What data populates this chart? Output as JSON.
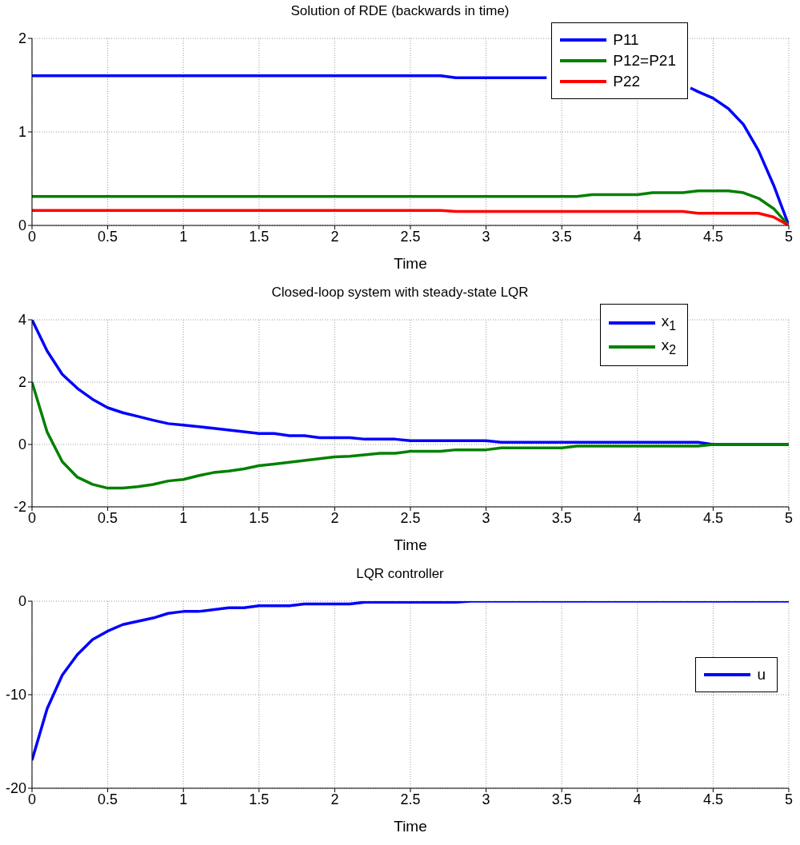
{
  "chart_data": [
    {
      "type": "line",
      "title": "Solution of RDE (backwards in time)",
      "xlabel": "Time",
      "xlim": [
        0,
        5
      ],
      "xticks": [
        0,
        0.5,
        1,
        1.5,
        2,
        2.5,
        3,
        3.5,
        4,
        4.5,
        5
      ],
      "ylim": [
        0,
        2
      ],
      "yticks": [
        0,
        1,
        2
      ],
      "grid": true,
      "legend": "top right",
      "line_style": "solid",
      "marker": "none",
      "series": [
        {
          "name": "P11",
          "color": "#0000ff",
          "x": [
            0,
            2.7,
            2.8,
            3.4,
            3.5,
            4.35,
            4.4,
            4.5,
            4.6,
            4.7,
            4.8,
            4.9,
            5
          ],
          "values": [
            1.6,
            1.6,
            1.58,
            1.58,
            null,
            1.47,
            1.43,
            1.36,
            1.25,
            1.08,
            0.8,
            0.43,
            0
          ]
        },
        {
          "name": "P12=P21",
          "color": "#008000",
          "x": [
            0,
            3.6,
            3.7,
            4.0,
            4.1,
            4.3,
            4.4,
            4.6,
            4.7,
            4.8,
            4.9,
            5
          ],
          "values": [
            0.31,
            0.31,
            0.33,
            0.33,
            0.35,
            0.35,
            0.37,
            0.37,
            0.35,
            0.29,
            0.18,
            0
          ]
        },
        {
          "name": "P22",
          "color": "#ff0000",
          "x": [
            0,
            2.7,
            2.8,
            4.3,
            4.4,
            4.8,
            4.9,
            5
          ],
          "values": [
            0.16,
            0.16,
            0.15,
            0.15,
            0.13,
            0.13,
            0.09,
            0
          ]
        }
      ]
    },
    {
      "type": "line",
      "title": "Closed-loop system with steady-state LQR",
      "xlabel": "Time",
      "xlim": [
        0,
        5
      ],
      "xticks": [
        0,
        0.5,
        1,
        1.5,
        2,
        2.5,
        3,
        3.5,
        4,
        4.5,
        5
      ],
      "ylim": [
        -2,
        4
      ],
      "yticks": [
        -2,
        0,
        2,
        4
      ],
      "grid": true,
      "legend": "top right",
      "line_style": "solid",
      "marker": "none",
      "series": [
        {
          "name": "x$_{1}$",
          "color": "#0000ff",
          "x": [
            0,
            0.1,
            0.2,
            0.3,
            0.4,
            0.5,
            0.6,
            0.7,
            0.8,
            0.9,
            1,
            1.2,
            1.5,
            1.6,
            1.7,
            1.8,
            1.9,
            2.1,
            2.2,
            2.4,
            2.5,
            3.0,
            3.1,
            4.4,
            4.5,
            5
          ],
          "values": [
            4,
            3.0,
            2.25,
            1.8,
            1.45,
            1.18,
            1.02,
            0.9,
            0.78,
            0.67,
            0.62,
            0.52,
            0.35,
            0.35,
            0.28,
            0.28,
            0.22,
            0.22,
            0.17,
            0.17,
            0.12,
            0.12,
            0.07,
            0.07,
            0,
            0
          ]
        },
        {
          "name": "x$_{2}$",
          "color": "#008000",
          "x": [
            0,
            0.1,
            0.2,
            0.3,
            0.4,
            0.5,
            0.6,
            0.7,
            0.8,
            0.9,
            1,
            1.1,
            1.2,
            1.3,
            1.4,
            1.5,
            1.6,
            2.0,
            2.1,
            2.3,
            2.4,
            2.5,
            2.7,
            2.8,
            3.0,
            3.1,
            3.5,
            3.6,
            4.4,
            4.5,
            5
          ],
          "values": [
            2,
            0.4,
            -0.55,
            -1.05,
            -1.28,
            -1.4,
            -1.4,
            -1.35,
            -1.28,
            -1.17,
            -1.12,
            -1.0,
            -0.9,
            -0.85,
            -0.78,
            -0.68,
            -0.63,
            -0.4,
            -0.38,
            -0.28,
            -0.28,
            -0.22,
            -0.22,
            -0.17,
            -0.17,
            -0.11,
            -0.11,
            -0.05,
            -0.05,
            0,
            0
          ]
        }
      ]
    },
    {
      "type": "line",
      "title": "LQR controller",
      "xlabel": "Time",
      "xlim": [
        0,
        5
      ],
      "xticks": [
        0,
        0.5,
        1,
        1.5,
        2,
        2.5,
        3,
        3.5,
        4,
        4.5,
        5
      ],
      "ylim": [
        -20,
        0
      ],
      "yticks": [
        -20,
        -10,
        0
      ],
      "grid": true,
      "legend": "right",
      "line_style": "solid",
      "marker": "none",
      "series": [
        {
          "name": "u",
          "color": "#0000ff",
          "x": [
            0,
            0.1,
            0.2,
            0.3,
            0.4,
            0.5,
            0.6,
            0.8,
            0.9,
            1.0,
            1.1,
            1.3,
            1.4,
            1.5,
            1.7,
            1.8,
            2.1,
            2.2,
            2.8,
            2.9,
            5
          ],
          "values": [
            -17,
            -11.5,
            -7.9,
            -5.7,
            -4.1,
            -3.2,
            -2.5,
            -1.8,
            -1.3,
            -1.1,
            -1.1,
            -0.7,
            -0.7,
            -0.5,
            -0.5,
            -0.3,
            -0.3,
            -0.1,
            -0.1,
            0,
            0
          ]
        }
      ]
    }
  ]
}
